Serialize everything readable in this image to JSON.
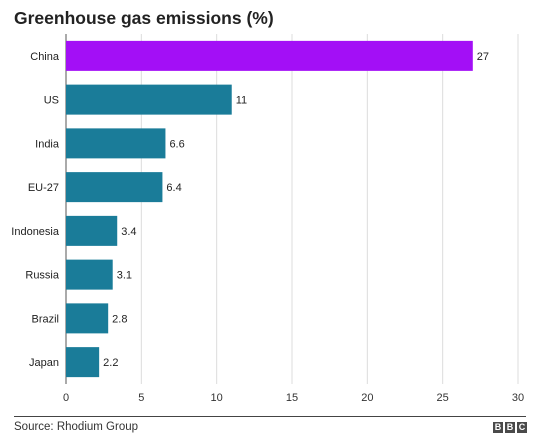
{
  "title": "Greenhouse gas emissions (%)",
  "source": "Source: Rhodium Group",
  "logo_text": "BBC",
  "chart_data": {
    "type": "bar",
    "orientation": "horizontal",
    "title": "Greenhouse gas emissions (%)",
    "categories": [
      "China",
      "US",
      "India",
      "EU-27",
      "Indonesia",
      "Russia",
      "Brazil",
      "Japan"
    ],
    "values": [
      27,
      11,
      6.6,
      6.4,
      3.4,
      3.1,
      2.8,
      2.2
    ],
    "value_labels": [
      "27",
      "11",
      "6.6",
      "6.4",
      "3.4",
      "3.1",
      "2.8",
      "2.2"
    ],
    "colors": [
      "#a30ff6",
      "#1a7c99",
      "#1a7c99",
      "#1a7c99",
      "#1a7c99",
      "#1a7c99",
      "#1a7c99",
      "#1a7c99"
    ],
    "xticks": [
      0,
      5,
      10,
      15,
      20,
      25,
      30
    ],
    "xlim": [
      0,
      30
    ],
    "grid": true,
    "xlabel": "",
    "ylabel": ""
  }
}
